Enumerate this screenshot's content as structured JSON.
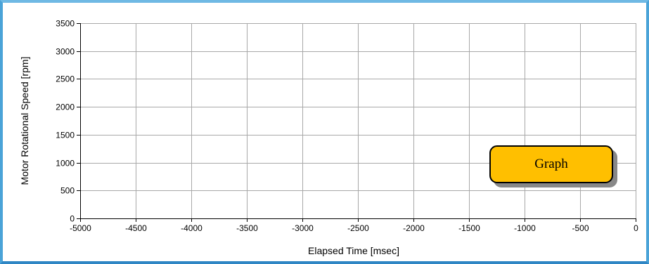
{
  "chart_data": {
    "type": "line",
    "title": "",
    "xlabel": "Elapsed Time [msec]",
    "ylabel": "Motor Rotational Speed [rpm]",
    "xlim": [
      -5000,
      0
    ],
    "ylim": [
      0,
      3500
    ],
    "x_ticks": [
      -5000,
      -4500,
      -4000,
      -3500,
      -3000,
      -2500,
      -2000,
      -1500,
      -1000,
      -500,
      0
    ],
    "y_ticks": [
      0,
      500,
      1000,
      1500,
      2000,
      2500,
      3000,
      3500
    ],
    "grid": true,
    "series": []
  },
  "graph_button": {
    "label": "Graph"
  },
  "colors": {
    "grid": "#a8a8a8",
    "axis": "#000000",
    "button_fill": "#ffbf00",
    "frame": "#4aa3d8"
  }
}
